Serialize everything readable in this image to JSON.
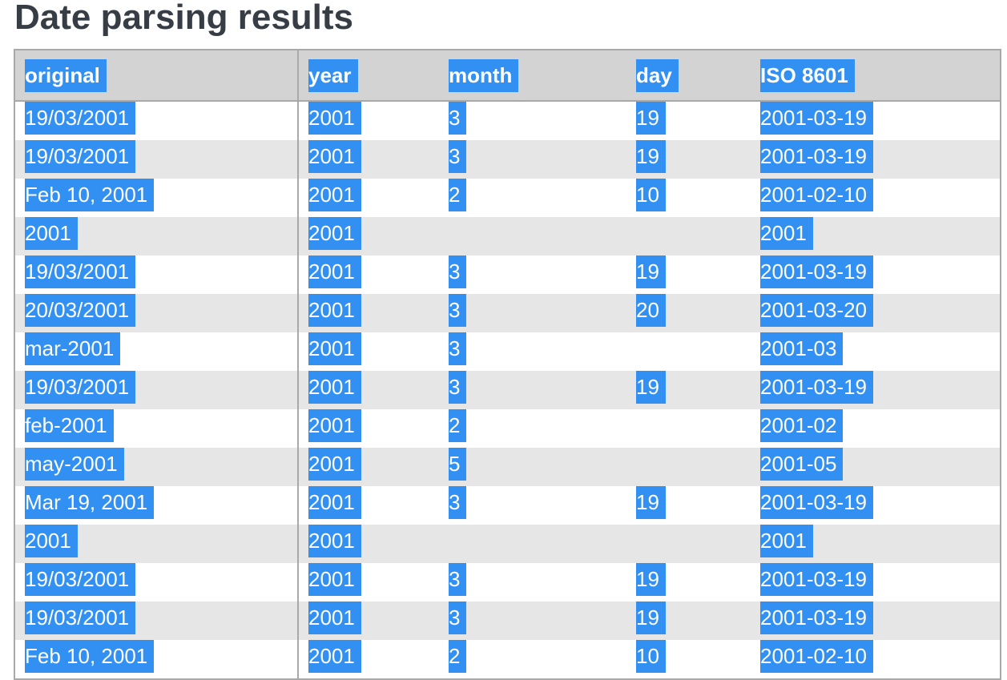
{
  "header": {
    "title": "Date parsing results"
  },
  "table": {
    "columns": [
      "original",
      "year",
      "month",
      "day",
      "ISO 8601"
    ],
    "rows": [
      [
        "19/03/2001",
        "2001",
        "3",
        "19",
        "2001-03-19"
      ],
      [
        "19/03/2001",
        "2001",
        "3",
        "19",
        "2001-03-19"
      ],
      [
        "Feb 10, 2001",
        "2001",
        "2",
        "10",
        "2001-02-10"
      ],
      [
        "2001",
        "2001",
        null,
        null,
        "2001"
      ],
      [
        "19/03/2001",
        "2001",
        "3",
        "19",
        "2001-03-19"
      ],
      [
        "20/03/2001",
        "2001",
        "3",
        "20",
        "2001-03-20"
      ],
      [
        "mar-2001",
        "2001",
        "3",
        null,
        "2001-03"
      ],
      [
        "19/03/2001",
        "2001",
        "3",
        "19",
        "2001-03-19"
      ],
      [
        "feb-2001",
        "2001",
        "2",
        null,
        "2001-02"
      ],
      [
        "may-2001",
        "2001",
        "5",
        null,
        "2001-05"
      ],
      [
        "Mar 19, 2001",
        "2001",
        "3",
        "19",
        "2001-03-19"
      ],
      [
        "2001",
        "2001",
        null,
        null,
        "2001"
      ],
      [
        "19/03/2001",
        "2001",
        "3",
        "19",
        "2001-03-19"
      ],
      [
        "19/03/2001",
        "2001",
        "3",
        "19",
        "2001-03-19"
      ],
      [
        "Feb 10, 2001",
        "2001",
        "2",
        "10",
        "2001-02-10"
      ]
    ]
  }
}
